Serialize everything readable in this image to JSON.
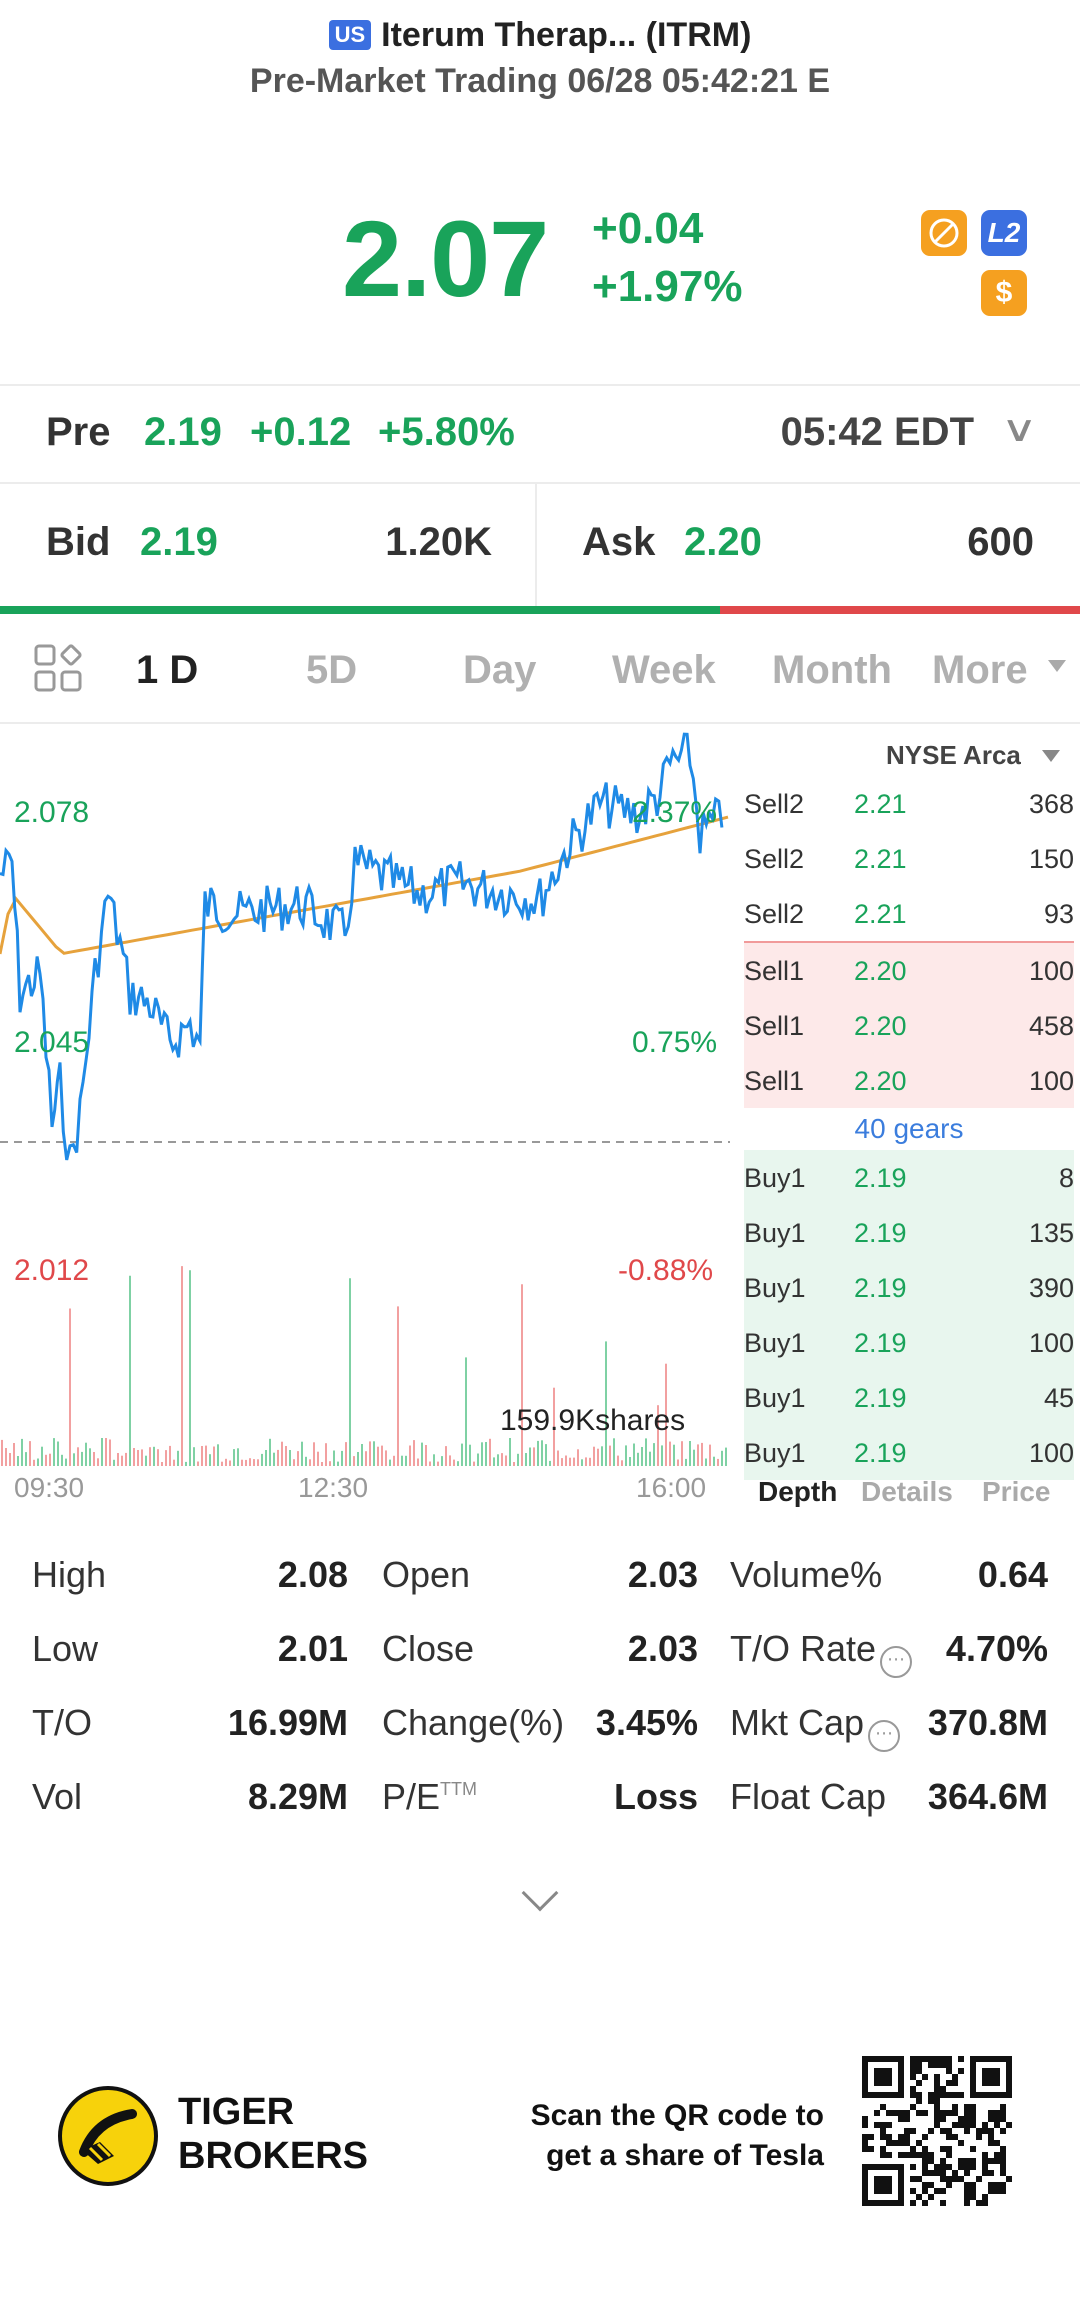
{
  "header": {
    "market_badge": "US",
    "title": "Iterum Therap... (ITRM)",
    "session_line": "Pre-Market Trading 06/28 05:42:21 E"
  },
  "quote": {
    "price": "2.07",
    "change": "+0.04",
    "change_pct": "+1.97%",
    "badges": [
      "no-shorting-icon",
      "level2-icon",
      "dollar-icon"
    ],
    "l2_label": "L2",
    "dollar_label": "$"
  },
  "pre": {
    "label": "Pre",
    "price": "2.19",
    "change": "+0.12",
    "change_pct": "+5.80%",
    "time": "05:42 EDT"
  },
  "bid_ask": {
    "bid_label": "Bid",
    "bid_price": "2.19",
    "bid_size": "1.20K",
    "ask_label": "Ask",
    "ask_price": "2.20",
    "ask_size": "600",
    "bid_ratio": 0.667
  },
  "tabs": [
    "1 D",
    "5D",
    "Day",
    "Week",
    "Month",
    "More"
  ],
  "active_tab": "1 D",
  "chart_data": {
    "type": "line",
    "labels": {
      "price_high": "2.078",
      "price_mid": "2.045",
      "price_low": "2.012",
      "pct_high": "2.37%",
      "pct_mid": "0.75%",
      "pct_low": "-0.88%"
    },
    "volume_label": "159.9Kshares",
    "x_ticks": [
      "09:30",
      "12:30",
      "16:00"
    ],
    "ylim": [
      2.012,
      2.078
    ],
    "prev_close": 2.03
  },
  "order_book": {
    "exchange": "NYSE Arca",
    "sell2": [
      {
        "side": "Sell2",
        "price": "2.21",
        "qty": "368"
      },
      {
        "side": "Sell2",
        "price": "2.21",
        "qty": "150"
      },
      {
        "side": "Sell2",
        "price": "2.21",
        "qty": "93"
      }
    ],
    "sell1": [
      {
        "side": "Sell1",
        "price": "2.20",
        "qty": "100"
      },
      {
        "side": "Sell1",
        "price": "2.20",
        "qty": "458"
      },
      {
        "side": "Sell1",
        "price": "2.20",
        "qty": "100"
      }
    ],
    "gears": "40 gears",
    "buy1": [
      {
        "side": "Buy1",
        "price": "2.19",
        "qty": "8"
      },
      {
        "side": "Buy1",
        "price": "2.19",
        "qty": "135"
      },
      {
        "side": "Buy1",
        "price": "2.19",
        "qty": "390"
      },
      {
        "side": "Buy1",
        "price": "2.19",
        "qty": "100"
      },
      {
        "side": "Buy1",
        "price": "2.19",
        "qty": "45"
      },
      {
        "side": "Buy1",
        "price": "2.19",
        "qty": "100"
      }
    ],
    "tabs": [
      "Depth",
      "Details",
      "Price"
    ]
  },
  "stats": {
    "high_label": "High",
    "high": "2.08",
    "open_label": "Open",
    "open": "2.03",
    "volpct_label": "Volume%",
    "volpct": "0.64",
    "low_label": "Low",
    "low": "2.01",
    "close_label": "Close",
    "close": "2.03",
    "torate_label": "T/O Rate",
    "torate": "4.70%",
    "to_label": "T/O",
    "to": "16.99M",
    "change_label": "Change(%)",
    "change": "3.45%",
    "mktcap_label": "Mkt Cap",
    "mktcap": "370.8M",
    "vol_label": "Vol",
    "vol": "8.29M",
    "pe_label": "P/E",
    "pe_sup": "TTM",
    "pe": "Loss",
    "floatcap_label": "Float Cap",
    "floatcap": "364.6M"
  },
  "footer": {
    "brand_line1": "TIGER",
    "brand_line2": "BROKERS",
    "scan_line1": "Scan the QR code to",
    "scan_line2": "get a share of Tesla"
  },
  "colors": {
    "up": "#19a35a",
    "down": "#e0484a",
    "line": "#1f8ae6",
    "avg": "#e6a23c"
  }
}
